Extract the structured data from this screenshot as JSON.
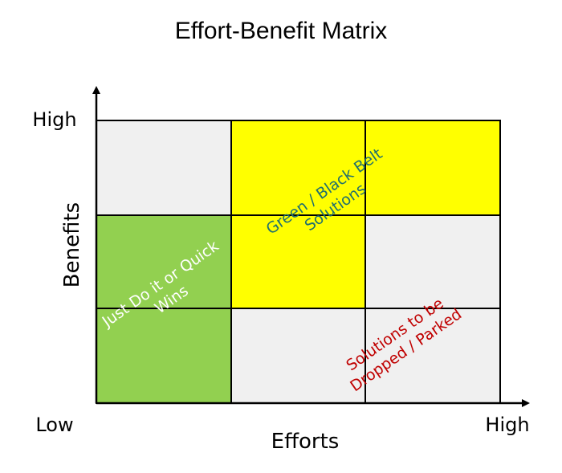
{
  "title": "Effort-Benefit Matrix",
  "axes": {
    "y_label": "Benefits",
    "x_label": "Efforts",
    "y_high": "High",
    "x_low": "Low",
    "x_high": "High"
  },
  "colors": {
    "cell_default": "#f0f0f0",
    "quick_wins": "#92d050",
    "green_black_belt": "#ffff00",
    "grid_line": "#000000",
    "green_black_belt_text": "#1f6f6f",
    "dropped_text": "#c00000",
    "quick_wins_text": "#ffffff"
  },
  "zones": {
    "quick_wins": [
      "Just Do it or Quick",
      "Wins"
    ],
    "green_black_belt": [
      "Green / Black Belt",
      "Solutions"
    ],
    "dropped": [
      "Solutions to be",
      "Dropped / Parked"
    ]
  }
}
